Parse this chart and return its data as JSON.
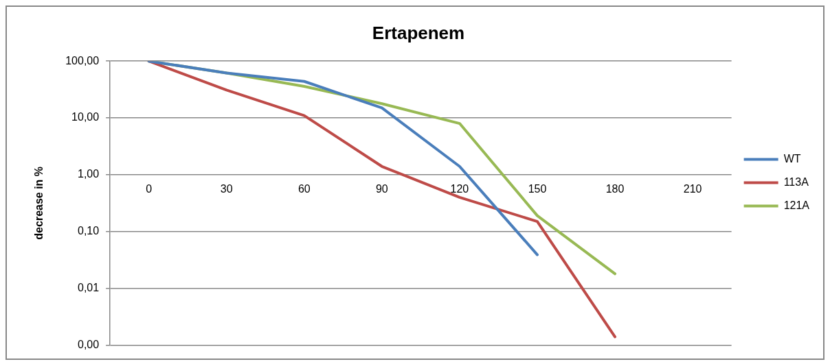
{
  "chart_data": {
    "type": "line",
    "title": "Ertapenem",
    "ylabel": "decrease in %",
    "categories": [
      "0",
      "30",
      "60",
      "90",
      "120",
      "150",
      "180",
      "210"
    ],
    "series": [
      {
        "name": "WT",
        "color": "#4a7ebb",
        "values": [
          100,
          62,
          44,
          15,
          1.4,
          0.039,
          null,
          null
        ]
      },
      {
        "name": "113A",
        "color": "#be4b48",
        "values": [
          100,
          31,
          11,
          1.4,
          0.4,
          0.15,
          0.0014,
          null
        ]
      },
      {
        "name": "121A",
        "color": "#98b954",
        "values": [
          100,
          62,
          36,
          17.8,
          8,
          0.19,
          0.018,
          null
        ]
      }
    ],
    "log": "y",
    "ylim": [
      0.001,
      100
    ],
    "yticks": [
      {
        "value": 0.001,
        "label": "0,00"
      },
      {
        "value": 0.01,
        "label": "0,01"
      },
      {
        "value": 0.1,
        "label": "0,10"
      },
      {
        "value": 1,
        "label": "1,00"
      },
      {
        "value": 10,
        "label": "10,00"
      },
      {
        "value": 100,
        "label": "100,00"
      }
    ],
    "grid": "y",
    "legend": "right",
    "marker": "none",
    "line_style": "solid"
  }
}
